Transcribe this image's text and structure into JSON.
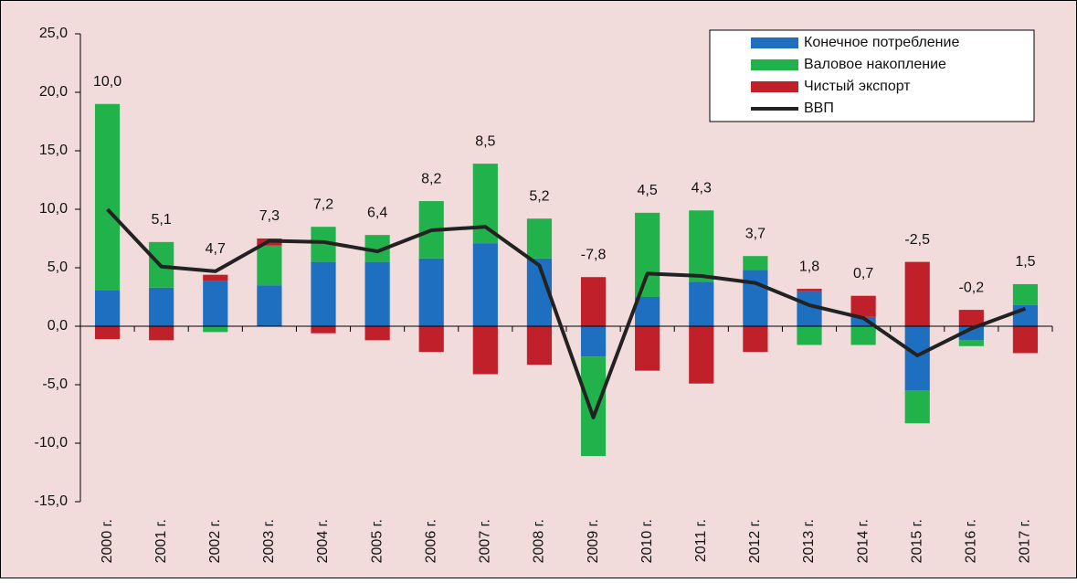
{
  "chart_data": {
    "type": "stacked_bar_line",
    "categories": [
      "2000 г.",
      "2001 г.",
      "2002 г.",
      "2003 г.",
      "2004 г.",
      "2005 г.",
      "2006 г.",
      "2007 г.",
      "2008 г.",
      "2009 г.",
      "2010 г.",
      "2011 г.",
      "2012 г.",
      "2013 г.",
      "2014 г.",
      "2015 г.",
      "2016 г.",
      "2017 г."
    ],
    "series": [
      {
        "name": "Конечное потребление",
        "color": "#1f6fc0",
        "values": [
          3.1,
          3.3,
          3.9,
          3.5,
          5.5,
          5.5,
          5.8,
          7.1,
          5.8,
          -2.6,
          2.5,
          3.8,
          4.8,
          3.0,
          0.8,
          -5.5,
          -1.2,
          1.8
        ]
      },
      {
        "name": "Валовое накопление",
        "color": "#22b24c",
        "values": [
          15.9,
          3.9,
          -0.5,
          3.4,
          3.0,
          2.3,
          4.9,
          6.8,
          3.4,
          -8.5,
          7.2,
          6.1,
          1.2,
          -1.6,
          -1.6,
          -2.8,
          -0.5,
          1.8
        ]
      },
      {
        "name": "Чистый экспорт",
        "color": "#c0202a",
        "values": [
          -1.1,
          -1.2,
          0.5,
          0.6,
          -0.6,
          -1.2,
          -2.2,
          -4.1,
          -3.3,
          4.2,
          -3.8,
          -4.9,
          -2.2,
          0.2,
          1.8,
          5.5,
          1.4,
          -2.3
        ]
      }
    ],
    "line": {
      "name": "ВВП",
      "color": "#222222",
      "values": [
        10.0,
        5.1,
        4.7,
        7.3,
        7.2,
        6.4,
        8.2,
        8.5,
        5.2,
        -7.8,
        4.5,
        4.3,
        3.7,
        1.8,
        0.7,
        -2.5,
        -0.2,
        1.5
      ],
      "value_labels": [
        "10,0",
        "5,1",
        "4,7",
        "7,3",
        "7,2",
        "6,4",
        "8,2",
        "8,5",
        "5,2",
        "-7,8",
        "4,5",
        "4,3",
        "3,7",
        "1,8",
        "0,7",
        "-2,5",
        "-0,2",
        "1,5"
      ]
    },
    "ylim": [
      -15,
      25
    ],
    "yticks": [
      {
        "value": -15,
        "label": "-15,0"
      },
      {
        "value": -10,
        "label": "-10,0"
      },
      {
        "value": -5,
        "label": "-5,0"
      },
      {
        "value": 0,
        "label": "0,0"
      },
      {
        "value": 5,
        "label": "5,0"
      },
      {
        "value": 10,
        "label": "10,0"
      },
      {
        "value": 15,
        "label": "15,0"
      },
      {
        "value": 20,
        "label": "20,0"
      },
      {
        "value": 25,
        "label": "25,0"
      }
    ],
    "legend": "upper right"
  }
}
